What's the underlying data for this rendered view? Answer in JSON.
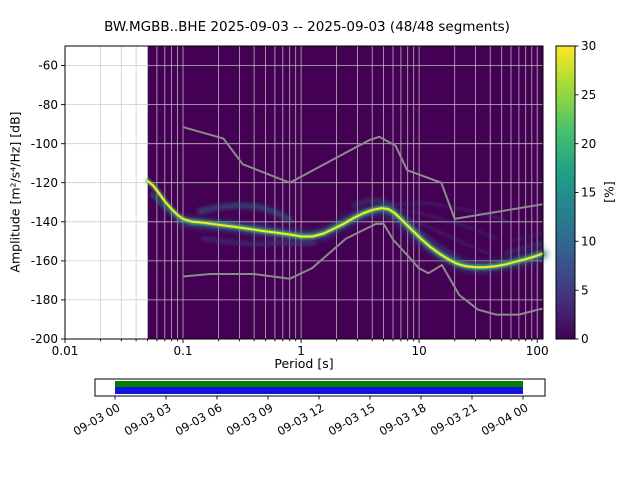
{
  "chart_data": {
    "type": "heatmap",
    "title": "BW.MGBB..BHE   2025-09-03 -- 2025-09-03  (48/48 segments)",
    "station": "BW.MGBB..BHE",
    "date_range": "2025-09-03 -- 2025-09-03",
    "segments": "48/48",
    "xlabel": "Period [s]",
    "ylabel": "Amplitude [m²/s⁴/Hz] [dB]",
    "xscale": "log",
    "xlim": [
      0.01,
      112
    ],
    "ylim": [
      -200,
      -50
    ],
    "grid": true,
    "xticks": {
      "values": [
        0.01,
        0.1,
        1,
        10,
        100
      ],
      "labels": [
        "0.01",
        "0.1",
        "1",
        "10",
        "100"
      ]
    },
    "yticks": {
      "values": [
        -60,
        -80,
        -100,
        -120,
        -140,
        -160,
        -180,
        -200
      ],
      "labels": [
        "-60",
        "-80",
        "-100",
        "-120",
        "-140",
        "-160",
        "-180",
        "-200"
      ]
    },
    "colors": {
      "histogram_background": "#440154",
      "grid_line": "#c9c9c9",
      "noise_model_line": "#8c8c8c",
      "mode_core": "#fde725",
      "mode_halo": "#44bf70",
      "axis_frame": "#000000"
    },
    "histogram": {
      "background": "#440154",
      "period_start": 0.05,
      "mode_line": {
        "core_color": "#fde725",
        "halo_color": "#44bf70",
        "points": [
          [
            0.05,
            -119
          ],
          [
            0.056,
            -121.5
          ],
          [
            0.062,
            -125
          ],
          [
            0.07,
            -129.5
          ],
          [
            0.08,
            -133.5
          ],
          [
            0.09,
            -136.5
          ],
          [
            0.1,
            -138.5
          ],
          [
            0.12,
            -140
          ],
          [
            0.15,
            -140.5
          ],
          [
            0.2,
            -141.5
          ],
          [
            0.27,
            -142.5
          ],
          [
            0.35,
            -143.5
          ],
          [
            0.45,
            -144.5
          ],
          [
            0.6,
            -145.5
          ],
          [
            0.8,
            -146.5
          ],
          [
            1.0,
            -147.5
          ],
          [
            1.25,
            -147.5
          ],
          [
            1.55,
            -146
          ],
          [
            1.9,
            -143.5
          ],
          [
            2.3,
            -141
          ],
          [
            2.8,
            -138
          ],
          [
            3.4,
            -135.5
          ],
          [
            4.1,
            -133.8
          ],
          [
            4.8,
            -133
          ],
          [
            5.5,
            -133.5
          ],
          [
            6.2,
            -135.5
          ],
          [
            7.0,
            -138.5
          ],
          [
            8.0,
            -142
          ],
          [
            9.0,
            -145
          ],
          [
            10.5,
            -149
          ],
          [
            12.5,
            -153
          ],
          [
            15,
            -156.5
          ],
          [
            18,
            -159.5
          ],
          [
            21,
            -161.5
          ],
          [
            25,
            -162.8
          ],
          [
            30,
            -163.3
          ],
          [
            36,
            -163.3
          ],
          [
            44,
            -162.8
          ],
          [
            54,
            -161.8
          ],
          [
            65,
            -160.5
          ],
          [
            78,
            -159.3
          ],
          [
            92,
            -158
          ],
          [
            112,
            -156.3
          ]
        ]
      },
      "density_clouds": [
        {
          "name": "broad-blue-band",
          "color": "#355f8d",
          "width": 12,
          "opacity": 0.4,
          "blur": 2,
          "points": [
            [
              0.1,
              -140
            ],
            [
              0.15,
              -141
            ],
            [
              0.25,
              -142.5
            ],
            [
              0.4,
              -144
            ],
            [
              0.6,
              -145.5
            ],
            [
              0.9,
              -147
            ],
            [
              1.2,
              -147.5
            ],
            [
              1.6,
              -146
            ],
            [
              2.2,
              -141.5
            ],
            [
              3,
              -137
            ],
            [
              4,
              -134.5
            ],
            [
              5,
              -133.5
            ],
            [
              6,
              -135.5
            ],
            [
              7.5,
              -140.5
            ],
            [
              9,
              -145
            ],
            [
              11,
              -150
            ],
            [
              14,
              -155
            ],
            [
              18,
              -159.5
            ],
            [
              25,
              -162.8
            ],
            [
              35,
              -163.3
            ],
            [
              50,
              -162
            ],
            [
              70,
              -160
            ],
            [
              90,
              -158.3
            ],
            [
              112,
              -156.5
            ]
          ]
        },
        {
          "name": "teal-mid-band",
          "color": "#21918c",
          "width": 6,
          "opacity": 0.5,
          "blur": 1,
          "points": [
            [
              0.12,
              -140
            ],
            [
              0.2,
              -141.5
            ],
            [
              0.35,
              -143.5
            ],
            [
              0.55,
              -145
            ],
            [
              0.8,
              -146.5
            ],
            [
              1.1,
              -147.5
            ],
            [
              1.5,
              -146
            ],
            [
              2,
              -142.5
            ],
            [
              2.8,
              -138
            ],
            [
              3.8,
              -134.5
            ],
            [
              5,
              -133.2
            ],
            [
              6,
              -135.5
            ],
            [
              7.5,
              -140.5
            ],
            [
              9.5,
              -146.5
            ],
            [
              12,
              -152.5
            ],
            [
              16,
              -157.5
            ],
            [
              22,
              -161.5
            ],
            [
              30,
              -163.3
            ],
            [
              45,
              -162.5
            ],
            [
              65,
              -160.5
            ],
            [
              90,
              -158.3
            ],
            [
              112,
              -156.5
            ]
          ]
        },
        {
          "name": "short-period-blob-upper",
          "color": "#2a788e",
          "width": 6,
          "opacity": 0.5,
          "blur": 1,
          "points": [
            [
              0.14,
              -134.5
            ],
            [
              0.2,
              -132.5
            ],
            [
              0.3,
              -131.5
            ],
            [
              0.45,
              -132.5
            ],
            [
              0.6,
              -135
            ],
            [
              0.8,
              -139
            ]
          ]
        },
        {
          "name": "short-period-blob-lower",
          "color": "#414487",
          "width": 5,
          "opacity": 0.5,
          "blur": 1,
          "points": [
            [
              0.15,
              -148.5
            ],
            [
              0.25,
              -150.5
            ],
            [
              0.4,
              -151.5
            ],
            [
              0.6,
              -151
            ],
            [
              0.9,
              -151.5
            ],
            [
              1.3,
              -151
            ]
          ]
        },
        {
          "name": "microseism-blob-upper",
          "color": "#2a788e",
          "width": 4,
          "opacity": 0.4,
          "blur": 1,
          "points": [
            [
              2.8,
              -131.5
            ],
            [
              3.6,
              -129.5
            ],
            [
              4.5,
              -129
            ],
            [
              5.4,
              -130.5
            ],
            [
              6.2,
              -133.5
            ]
          ]
        },
        {
          "name": "steep-left-fringe",
          "color": "#21918c",
          "width": 4,
          "opacity": 0.45,
          "blur": 0,
          "points": [
            [
              0.055,
              -126
            ],
            [
              0.07,
              -133
            ],
            [
              0.09,
              -138.5
            ],
            [
              0.12,
              -141
            ]
          ]
        },
        {
          "name": "fan-streak-1",
          "color": "#39568c",
          "width": 2.5,
          "opacity": 0.3,
          "blur": 0,
          "points": [
            [
              5.5,
              -131
            ],
            [
              12,
              -130.5
            ],
            [
              30,
              -134.5
            ],
            [
              55,
              -139.5
            ]
          ]
        },
        {
          "name": "fan-streak-2",
          "color": "#39568c",
          "width": 2.5,
          "opacity": 0.3,
          "blur": 0,
          "points": [
            [
              5.5,
              -133
            ],
            [
              12,
              -136.5
            ],
            [
              28,
              -143.5
            ],
            [
              45,
              -148.5
            ]
          ]
        },
        {
          "name": "fan-streak-3",
          "color": "#39568c",
          "width": 2.5,
          "opacity": 0.3,
          "blur": 0,
          "points": [
            [
              6,
              -135
            ],
            [
              12,
              -142.5
            ],
            [
              25,
              -151.5
            ],
            [
              40,
              -156.5
            ]
          ]
        },
        {
          "name": "fan-streak-4",
          "color": "#39568c",
          "width": 2.5,
          "opacity": 0.28,
          "blur": 0,
          "points": [
            [
              6.5,
              -137
            ],
            [
              13,
              -149.5
            ],
            [
              22,
              -158.5
            ]
          ]
        },
        {
          "name": "long-period-fuzz-1",
          "color": "#2a788e",
          "width": 3.5,
          "opacity": 0.35,
          "blur": 1,
          "points": [
            [
              55,
              -156
            ],
            [
              75,
              -153.5
            ],
            [
              95,
              -152
            ],
            [
              112,
              -151
            ]
          ]
        },
        {
          "name": "long-period-fuzz-2",
          "color": "#355f8d",
          "width": 2.5,
          "opacity": 0.22,
          "blur": 0,
          "points": [
            [
              60,
              -150
            ],
            [
              85,
              -147.5
            ],
            [
              112,
              -146
            ]
          ]
        }
      ]
    },
    "noise_models": {
      "color": "#8c8c8c",
      "nhnm": [
        [
          0.1,
          -91.5
        ],
        [
          0.22,
          -97.4
        ],
        [
          0.32,
          -110.5
        ],
        [
          0.8,
          -120.0
        ],
        [
          3.8,
          -98.1
        ],
        [
          4.6,
          -96.5
        ],
        [
          6.3,
          -101.0
        ],
        [
          7.9,
          -113.6
        ],
        [
          15.4,
          -120.0
        ],
        [
          20,
          -138.5
        ],
        [
          112,
          -131.0
        ]
      ],
      "nlnm": [
        [
          0.1,
          -168.0
        ],
        [
          0.17,
          -166.7
        ],
        [
          0.4,
          -166.7
        ],
        [
          0.8,
          -169.2
        ],
        [
          1.24,
          -163.7
        ],
        [
          2.4,
          -148.6
        ],
        [
          4.3,
          -141.1
        ],
        [
          5.0,
          -141.1
        ],
        [
          6.0,
          -149.0
        ],
        [
          10,
          -163.8
        ],
        [
          12,
          -166.3
        ],
        [
          15.6,
          -162.1
        ],
        [
          21.9,
          -177.5
        ],
        [
          31.6,
          -185.0
        ],
        [
          45,
          -187.5
        ],
        [
          70,
          -187.5
        ],
        [
          101,
          -185.0
        ],
        [
          112,
          -184.5
        ]
      ]
    },
    "colorbar": {
      "label": "[%]",
      "min": 0,
      "max": 30,
      "ticks": [
        0,
        5,
        10,
        15,
        20,
        25,
        30
      ],
      "colormap": "viridis",
      "gradient": [
        "#440154",
        "#46327e",
        "#365c8d",
        "#277f8e",
        "#1fa187",
        "#4ac16d",
        "#a0da39",
        "#fde725"
      ]
    },
    "timeline": {
      "tick_labels": [
        "09-03 00",
        "09-03 03",
        "09-03 06",
        "09-03 09",
        "09-03 12",
        "09-03 15",
        "09-03 18",
        "09-03 21",
        "09-04 00"
      ],
      "coverage_green": "#008000",
      "coverage_blue": "#1212dd"
    }
  }
}
